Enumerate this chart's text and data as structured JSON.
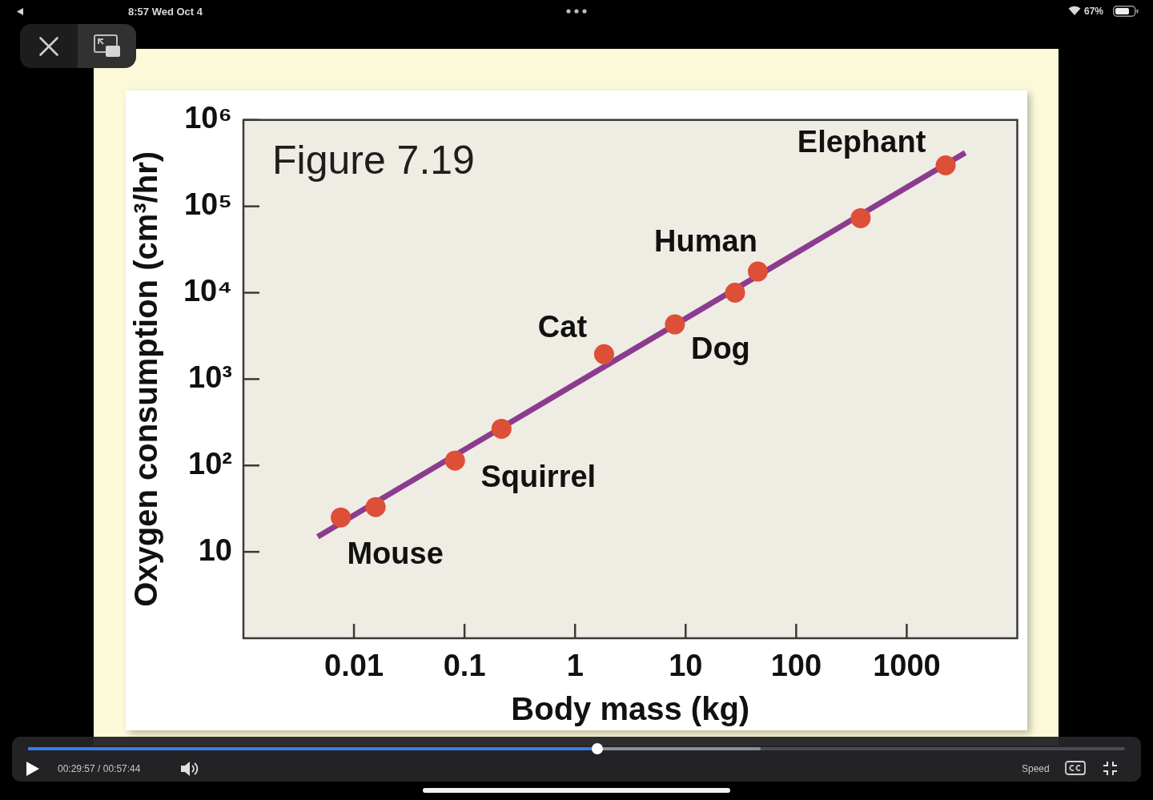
{
  "chart_data": {
    "type": "scatter",
    "title": "Figure 7.19",
    "xlabel": "Body mass (kg)",
    "ylabel": "Oxygen consumption (cm³/hr)",
    "log": "xy",
    "xlim": [
      0.001,
      10000
    ],
    "ylim": [
      1,
      1000000
    ],
    "xticks": [
      0.01,
      0.1,
      1,
      10,
      100,
      1000
    ],
    "yticks": [
      10,
      {
        "value": 100,
        "label": "10²"
      },
      {
        "value": 1000,
        "label": "10³"
      },
      {
        "value": 10000,
        "label": "10⁴"
      },
      {
        "value": 100000,
        "label": "10⁵"
      },
      {
        "value": 1000000,
        "label": "10⁶"
      }
    ],
    "series": [
      {
        "type": "scatter",
        "color": "#dd4f37",
        "marker": "circle",
        "x": [
          0.0076,
          0.0157,
          0.082,
          0.216,
          1.83,
          8.0,
          28,
          45,
          383,
          2250
        ],
        "values": [
          25,
          33,
          114,
          266,
          1940,
          4300,
          10000,
          17600,
          73000,
          298000
        ]
      },
      {
        "type": "line",
        "color": "#8b3c8e",
        "x": [
          0.0047,
          3380
        ],
        "values": [
          15,
          418000
        ]
      }
    ],
    "annotations": [
      {
        "text": "Mouse",
        "x": 0.0076,
        "y": 25
      },
      {
        "text": "Squirrel",
        "x": 0.216,
        "y": 266
      },
      {
        "text": "Cat",
        "x": 1.83,
        "y": 1940
      },
      {
        "text": "Dog",
        "x": 8.0,
        "y": 4300
      },
      {
        "text": "Human",
        "x": 45,
        "y": 17600
      },
      {
        "text": "Elephant",
        "x": 2250,
        "y": 298000
      },
      "8:57 Wed Oct 4",
      "67%",
      "00:29:57 / 00:57:44",
      "Speed"
    ]
  }
}
